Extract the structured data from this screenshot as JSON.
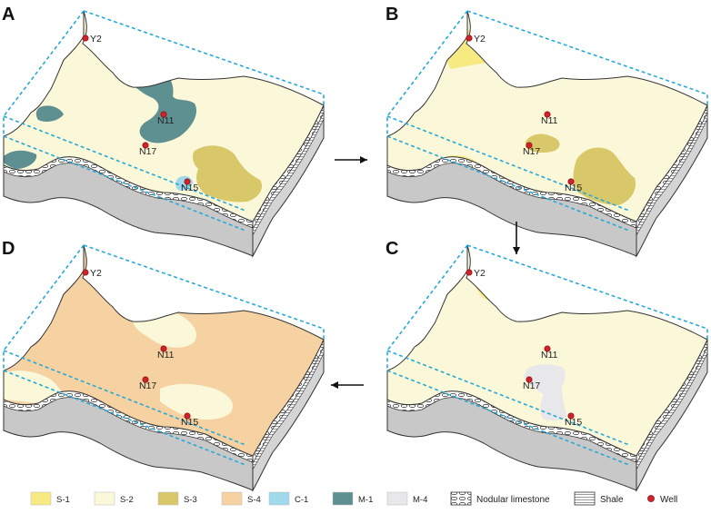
{
  "colors": {
    "S-1": "#f7ea83",
    "S-2": "#fbf8d9",
    "S-3": "#d8c86a",
    "S-4": "#f6d2a2",
    "C-1": "#9fd9ea",
    "M-1": "#5f9091",
    "M-4": "#e8e8ea",
    "block_side": "#c8c8c8",
    "dash": "#29a9d6",
    "well": "#d0222a"
  },
  "panels": [
    {
      "key": "A",
      "letter": "A",
      "wells": [
        "Y2",
        "N11",
        "N17",
        "N15"
      ]
    },
    {
      "key": "B",
      "letter": "B",
      "wells": [
        "Y2",
        "N11",
        "N17",
        "N15"
      ]
    },
    {
      "key": "C",
      "letter": "C",
      "wells": [
        "Y2",
        "N11",
        "N17",
        "N15"
      ]
    },
    {
      "key": "D",
      "letter": "D",
      "wells": [
        "Y2",
        "N11",
        "N17",
        "N15"
      ]
    }
  ],
  "legend": [
    {
      "key": "S-1",
      "label": "S-1"
    },
    {
      "key": "S-2",
      "label": "S-2"
    },
    {
      "key": "S-3",
      "label": "S-3"
    },
    {
      "key": "S-4",
      "label": "S-4"
    },
    {
      "key": "C-1",
      "label": "C-1"
    },
    {
      "key": "M-1",
      "label": "M-1"
    },
    {
      "key": "M-4",
      "label": "M-4"
    },
    {
      "key": "nodular",
      "label": "Nodular limestone"
    },
    {
      "key": "shale",
      "label": "Shale"
    },
    {
      "key": "well",
      "label": "Well"
    }
  ]
}
